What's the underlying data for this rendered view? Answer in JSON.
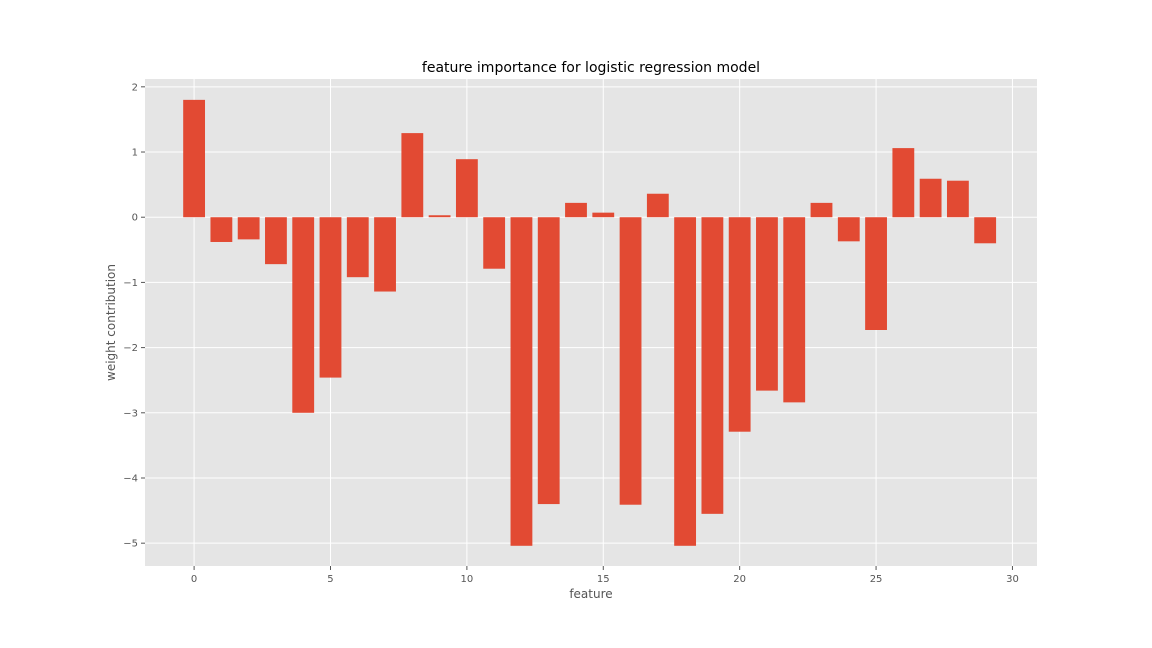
{
  "chart_data": {
    "type": "bar",
    "title": "feature importance for logistic regression model",
    "xlabel": "feature",
    "ylabel": "weight contribution",
    "x": [
      0,
      1,
      2,
      3,
      4,
      5,
      6,
      7,
      8,
      9,
      10,
      11,
      12,
      13,
      14,
      15,
      16,
      17,
      18,
      19,
      20,
      21,
      22,
      23,
      24,
      25,
      26,
      27,
      28,
      29
    ],
    "values": [
      1.8,
      -0.38,
      -0.34,
      -0.72,
      -3.0,
      -2.46,
      -0.92,
      -1.14,
      1.29,
      0.03,
      0.89,
      -0.79,
      -5.04,
      -4.4,
      0.22,
      0.07,
      -4.41,
      0.36,
      -5.04,
      -4.55,
      -3.29,
      -2.66,
      -2.84,
      0.22,
      -0.37,
      -1.73,
      1.06,
      0.59,
      0.56,
      -0.4
    ],
    "xticks": [
      0,
      5,
      10,
      15,
      20,
      25,
      30
    ],
    "xtick_labels": [
      "0",
      "5",
      "10",
      "15",
      "20",
      "25",
      "30"
    ],
    "yticks": [
      2,
      1,
      0,
      -1,
      -2,
      -3,
      -4,
      -5
    ],
    "ytick_labels": [
      "2",
      "1",
      "0",
      "−1",
      "−2",
      "−3",
      "−4",
      "−5"
    ],
    "xlim": [
      -1.8,
      30.9
    ],
    "ylim": [
      -5.35,
      2.12
    ],
    "grid": true,
    "bar_color": "#E24A33",
    "plot_background": "#E5E5E5",
    "grid_color": "#FFFFFF"
  }
}
